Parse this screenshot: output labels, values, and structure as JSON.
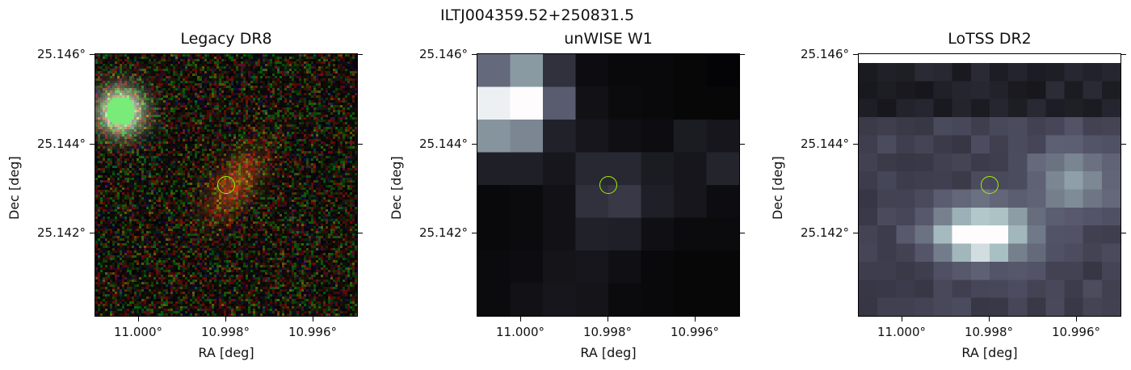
{
  "figure": {
    "title": "ILTJ004359.52+250831.5"
  },
  "panels": [
    {
      "title": "Legacy DR8",
      "colormap": "rgb-noise",
      "xlabel": "RA [deg]",
      "ylabel": "Dec [deg]",
      "xticks": [
        "11.000°",
        "10.998°",
        "10.996°"
      ],
      "yticks": [
        "25.146°",
        "25.144°",
        "25.142°"
      ]
    },
    {
      "title": "unWISE W1",
      "colormap": "bone",
      "xlabel": "RA [deg]",
      "ylabel": "Dec [deg]",
      "xticks": [
        "11.000°",
        "10.998°",
        "10.996°"
      ],
      "yticks": [
        "25.146°",
        "25.144°",
        "25.142°"
      ]
    },
    {
      "title": "LoTSS DR2",
      "colormap": "bone",
      "xlabel": "RA [deg]",
      "ylabel": "Dec [deg]",
      "xticks": [
        "11.000°",
        "10.998°",
        "10.996°"
      ],
      "yticks": [
        "25.146°",
        "25.144°",
        "25.142°"
      ]
    }
  ],
  "marker": {
    "type": "circle",
    "color": "#a6f000"
  }
}
